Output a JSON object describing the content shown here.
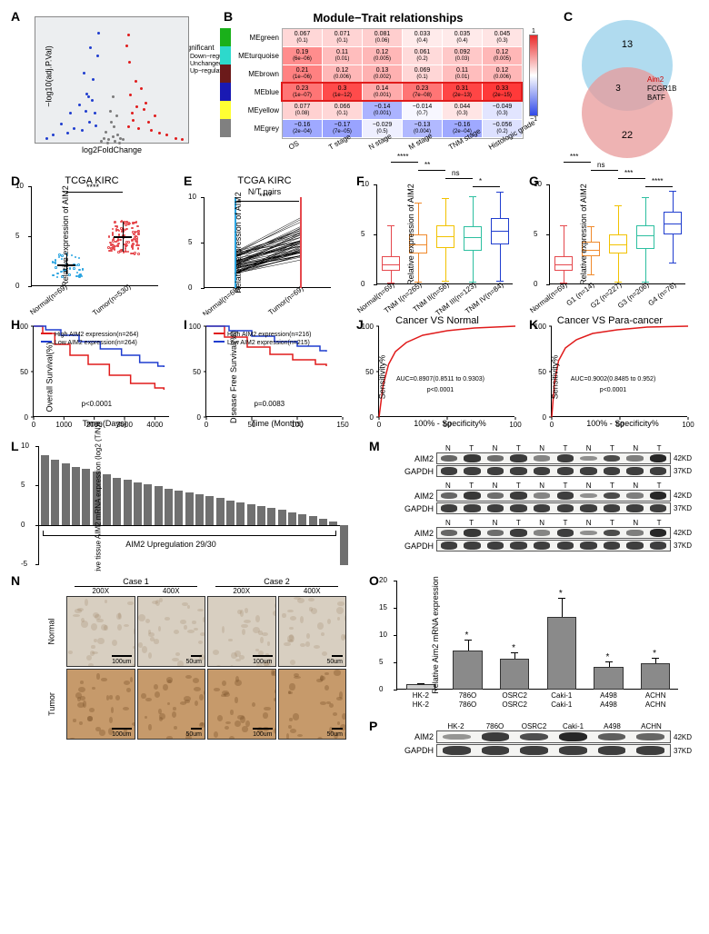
{
  "panelA": {
    "label": "A",
    "type": "volcano-scatter",
    "xlim": [
      -6,
      6
    ],
    "ylim": [
      0,
      8
    ],
    "xlabel": "log2FoldChange",
    "ylabel": "−log10(adj.P.Val)",
    "legend_title": "significant",
    "legend": [
      {
        "label": "Down−regulated",
        "color": "#1f3dcf"
      },
      {
        "label": "Unchanged",
        "color": "#7a7a7a"
      },
      {
        "label": "Up−regulated",
        "color": "#e01b1b"
      }
    ],
    "bg_color": "#eceef0",
    "points": {
      "down": [
        [
          -1.3,
          1.2
        ],
        [
          -1.8,
          1.4
        ],
        [
          -2.4,
          0.9
        ],
        [
          -2.1,
          2.1
        ],
        [
          -3.0,
          1.0
        ],
        [
          -3.5,
          0.7
        ],
        [
          -4.0,
          1.3
        ],
        [
          -2.0,
          3.2
        ],
        [
          -1.5,
          4.1
        ],
        [
          -1.2,
          5.6
        ],
        [
          -2.6,
          2.5
        ],
        [
          -4.6,
          0.6
        ],
        [
          -5.1,
          0.4
        ],
        [
          -1.7,
          6.1
        ],
        [
          -2.2,
          4.5
        ],
        [
          -1.9,
          3.0
        ],
        [
          -1.4,
          2.0
        ],
        [
          -1.6,
          2.8
        ],
        [
          -3.3,
          2.0
        ],
        [
          -1.1,
          7.0
        ]
      ],
      "up": [
        [
          1.2,
          1.1
        ],
        [
          1.6,
          1.5
        ],
        [
          2.0,
          1.0
        ],
        [
          2.4,
          2.2
        ],
        [
          3.0,
          0.9
        ],
        [
          3.6,
          0.7
        ],
        [
          4.2,
          0.6
        ],
        [
          1.4,
          3.1
        ],
        [
          1.8,
          4.0
        ],
        [
          1.3,
          5.2
        ],
        [
          2.6,
          2.6
        ],
        [
          4.9,
          0.4
        ],
        [
          5.4,
          0.3
        ],
        [
          1.1,
          6.2
        ],
        [
          2.2,
          3.5
        ],
        [
          1.9,
          2.4
        ],
        [
          1.5,
          2.0
        ],
        [
          3.3,
          1.8
        ],
        [
          2.8,
          1.4
        ],
        [
          1.2,
          6.9
        ]
      ],
      "unchanged": [
        [
          -0.3,
          0.3
        ],
        [
          0.2,
          0.2
        ],
        [
          -0.5,
          0.8
        ],
        [
          0.4,
          0.6
        ],
        [
          -0.1,
          1.4
        ],
        [
          0.1,
          1.1
        ],
        [
          -0.7,
          0.4
        ],
        [
          0.6,
          0.4
        ],
        [
          -0.2,
          2.1
        ],
        [
          0.3,
          1.8
        ],
        [
          0.0,
          0.5
        ],
        [
          -0.4,
          0.1
        ],
        [
          0.5,
          0.1
        ],
        [
          0.8,
          0.3
        ],
        [
          -0.9,
          0.2
        ],
        [
          0.0,
          3.0
        ]
      ]
    }
  },
  "panelB": {
    "label": "B",
    "title": "Module−Trait relationships",
    "row_names": [
      "MEgreen",
      "MEturquoise",
      "MEbrown",
      "MEblue",
      "MEyellow",
      "MEgrey"
    ],
    "row_colors": [
      "#1ab01a",
      "#2dd9cc",
      "#6b1a1a",
      "#1919b3",
      "#ffff33",
      "#808080"
    ],
    "col_names": [
      "OS",
      "T stage",
      "N stage",
      "M stage",
      "TNM stage",
      "Histologic grade"
    ],
    "scale_min": -1,
    "scale_max": 1,
    "scale_colors": [
      "#3049e8",
      "#ffffff",
      "#ea2a2a"
    ],
    "highlight_row": 3,
    "cells": [
      [
        [
          "0.067",
          "(0.1)"
        ],
        [
          "0.071",
          "(0.1)"
        ],
        [
          "0.081",
          "(0.06)"
        ],
        [
          "0.033",
          "(0.4)"
        ],
        [
          "0.035",
          "(0.4)"
        ],
        [
          "0.045",
          "(0.3)"
        ]
      ],
      [
        [
          "0.19",
          "(6e−06)"
        ],
        [
          "0.11",
          "(0.01)"
        ],
        [
          "0.12",
          "(0.005)"
        ],
        [
          "0.061",
          "(0.2)"
        ],
        [
          "0.092",
          "(0.03)"
        ],
        [
          "0.12",
          "(0.005)"
        ]
      ],
      [
        [
          "0.21",
          "(1e−06)"
        ],
        [
          "0.12",
          "(0.006)"
        ],
        [
          "0.13",
          "(0.002)"
        ],
        [
          "0.069",
          "(0.1)"
        ],
        [
          "0.11",
          "(0.01)"
        ],
        [
          "0.12",
          "(0.006)"
        ]
      ],
      [
        [
          "0.23",
          "(1e−07)"
        ],
        [
          "0.3",
          "(1e−12)"
        ],
        [
          "0.14",
          "(0.001)"
        ],
        [
          "0.23",
          "(7e−08)"
        ],
        [
          "0.31",
          "(2e−13)"
        ],
        [
          "0.33",
          "(2e−15)"
        ]
      ],
      [
        [
          "0.077",
          "(0.08)"
        ],
        [
          "0.066",
          "(0.1)"
        ],
        [
          "−0.14",
          "(0.001)"
        ],
        [
          "−0.014",
          "(0.7)"
        ],
        [
          "0.044",
          "(0.3)"
        ],
        [
          "−0.049",
          "(0.3)"
        ]
      ],
      [
        [
          "−0.16",
          "(2e−04)"
        ],
        [
          "−0.17",
          "(7e−05)"
        ],
        [
          "−0.029",
          "(0.5)"
        ],
        [
          "−0.13",
          "(0.004)"
        ],
        [
          "−0.16",
          "(2e−04)"
        ],
        [
          "−0.056",
          "(0.2)"
        ]
      ]
    ]
  },
  "panelC": {
    "label": "C",
    "top": {
      "count": "13",
      "color": "#96cfea"
    },
    "bottom": {
      "count": "22",
      "color": "#e89a9a"
    },
    "overlap_count": "3",
    "overlap_genes": [
      "Aim2",
      "FCGR1B",
      "BATF"
    ]
  },
  "panelD": {
    "label": "D",
    "title": "TCGA KIRC",
    "ylabel": "Relative expression of AIM2",
    "ylim": [
      0,
      10
    ],
    "yticks": [
      0,
      5,
      10
    ],
    "groups": [
      {
        "label": "Normal(n=69)",
        "color": "#2aa4e0"
      },
      {
        "label": "Tumor(n=530)",
        "color": "#e5484d"
      }
    ],
    "sig": "****"
  },
  "panelE": {
    "label": "E",
    "title": "TCGA KIRC",
    "subtitle": "N/T pairs",
    "ylabel": "Relative expression of AIM2",
    "ylim": [
      0,
      10
    ],
    "yticks": [
      0,
      5,
      10
    ],
    "left": {
      "label": "Normal(n=69)",
      "color": "#2aa4e0"
    },
    "right": {
      "label": "Tumor(n=69)",
      "color": "#e5484d"
    },
    "sig": "****"
  },
  "panelF": {
    "label": "F",
    "ylabel": "Relative expression of AIM2",
    "ylim": [
      0,
      10
    ],
    "yticks": [
      0,
      5,
      10
    ],
    "groups": [
      {
        "label": "Normal(n=69)",
        "color": "#e5484d",
        "med": 2.0,
        "q1": 1.4,
        "q3": 2.8,
        "lo": 0.2,
        "hi": 5.9
      },
      {
        "label": "TNM I(n=265)",
        "color": "#f08a2c",
        "med": 4.0,
        "q1": 3.1,
        "q3": 5.0,
        "lo": 0.3,
        "hi": 8.2
      },
      {
        "label": "TNM II(n=56)",
        "color": "#f2c200",
        "med": 4.8,
        "q1": 3.6,
        "q3": 5.9,
        "lo": 0.4,
        "hi": 8.6
      },
      {
        "label": "TNM III(n=123)",
        "color": "#2dbfa0",
        "med": 4.7,
        "q1": 3.4,
        "q3": 5.8,
        "lo": 0.3,
        "hi": 8.8
      },
      {
        "label": "TNM IV(n=84)",
        "color": "#1f3dcf",
        "med": 5.4,
        "q1": 4.0,
        "q3": 6.6,
        "lo": 0.4,
        "hi": 9.3
      }
    ],
    "sigs": [
      [
        "0-1",
        "****"
      ],
      [
        "1-2",
        "**"
      ],
      [
        "2-3",
        "ns"
      ],
      [
        "3-4",
        "*"
      ]
    ]
  },
  "panelG": {
    "label": "G",
    "ylabel": "Relative expression of AIM2",
    "ylim": [
      0,
      10
    ],
    "yticks": [
      0,
      5,
      10
    ],
    "groups": [
      {
        "label": "Normal(n=69)",
        "color": "#e5484d",
        "med": 2.0,
        "q1": 1.4,
        "q3": 2.8,
        "lo": 0.2,
        "hi": 5.9
      },
      {
        "label": "G1 (n=14)",
        "color": "#f08a2c",
        "med": 3.5,
        "q1": 2.8,
        "q3": 4.3,
        "lo": 1.0,
        "hi": 5.8
      },
      {
        "label": "G2 (n=227)",
        "color": "#f2c200",
        "med": 4.0,
        "q1": 3.1,
        "q3": 5.0,
        "lo": 0.3,
        "hi": 7.9
      },
      {
        "label": "G3 (n=206)",
        "color": "#2dbfa0",
        "med": 4.9,
        "q1": 3.5,
        "q3": 5.9,
        "lo": 0.3,
        "hi": 8.7
      },
      {
        "label": "G4 (n=76)",
        "color": "#1f3dcf",
        "med": 6.1,
        "q1": 5.0,
        "q3": 7.3,
        "lo": 2.2,
        "hi": 9.4
      }
    ],
    "sigs": [
      [
        "0-1",
        "***"
      ],
      [
        "1-2",
        "ns"
      ],
      [
        "2-3",
        "***"
      ],
      [
        "3-4",
        "****"
      ]
    ]
  },
  "panelH": {
    "label": "H",
    "ylabel": "Overall Survival(%)",
    "xlabel": "Time (Days)",
    "ylim": [
      0,
      100
    ],
    "yticks": [
      0,
      50,
      100
    ],
    "xlim": [
      0,
      4500
    ],
    "xticks": [
      0,
      1000,
      2000,
      3000,
      4000
    ],
    "legend": [
      {
        "label": "High AIM2  expression(n=264)",
        "color": "#e01b1b"
      },
      {
        "label": "Low AIM2 expression(n=264)",
        "color": "#1f3dcf"
      }
    ],
    "p": "p<0.0001",
    "high": [
      [
        0,
        100
      ],
      [
        300,
        92
      ],
      [
        700,
        80
      ],
      [
        1200,
        68
      ],
      [
        1800,
        58
      ],
      [
        2500,
        46
      ],
      [
        3200,
        37
      ],
      [
        4000,
        32
      ],
      [
        4300,
        30
      ]
    ],
    "low": [
      [
        0,
        100
      ],
      [
        400,
        96
      ],
      [
        900,
        90
      ],
      [
        1500,
        83
      ],
      [
        2200,
        75
      ],
      [
        2900,
        68
      ],
      [
        3500,
        60
      ],
      [
        4100,
        56
      ],
      [
        4300,
        55
      ]
    ]
  },
  "panelI": {
    "label": "I",
    "ylabel": "Disease Free Survival(%)",
    "xlabel": "Time (Months)",
    "ylim": [
      0,
      100
    ],
    "yticks": [
      0,
      50,
      100
    ],
    "xlim": [
      0,
      150
    ],
    "xticks": [
      0,
      50,
      100,
      150
    ],
    "legend": [
      {
        "label": "High AIM2  expression(n=216)",
        "color": "#e01b1b"
      },
      {
        "label": "Low AIM2 expression(n=215)",
        "color": "#1f3dcf"
      }
    ],
    "p": "p=0.0083",
    "high": [
      [
        0,
        100
      ],
      [
        20,
        88
      ],
      [
        45,
        77
      ],
      [
        70,
        69
      ],
      [
        95,
        63
      ],
      [
        120,
        58
      ],
      [
        132,
        56
      ]
    ],
    "low": [
      [
        0,
        100
      ],
      [
        25,
        95
      ],
      [
        50,
        89
      ],
      [
        75,
        83
      ],
      [
        100,
        78
      ],
      [
        125,
        73
      ],
      [
        132,
        72
      ]
    ]
  },
  "panelJ": {
    "label": "J",
    "title": "Cancer VS Normal",
    "xlabel": "100% - Specificity%",
    "ylabel": "Sensitivity%",
    "xlim": [
      0,
      100
    ],
    "ylim": [
      0,
      100
    ],
    "xticks": [
      0,
      50,
      100
    ],
    "yticks": [
      0,
      50,
      100
    ],
    "auc": "AUC=0.8907(0.8511 to 0.9303)",
    "p": "p<0.0001",
    "line_color": "#e01b1b",
    "curve": [
      [
        0,
        0
      ],
      [
        3,
        35
      ],
      [
        7,
        58
      ],
      [
        12,
        72
      ],
      [
        20,
        82
      ],
      [
        32,
        90
      ],
      [
        50,
        95
      ],
      [
        70,
        98
      ],
      [
        100,
        100
      ]
    ]
  },
  "panelK": {
    "label": "K",
    "title": "Cancer VS Para-cancer",
    "xlabel": "100% - Specificity%",
    "ylabel": "Sensitivity%",
    "xlim": [
      0,
      100
    ],
    "ylim": [
      0,
      100
    ],
    "xticks": [
      0,
      50,
      100
    ],
    "yticks": [
      0,
      50,
      100
    ],
    "auc": "AUC=0.9002(0.8485 to 0.952)",
    "p": "p<0.0001",
    "line_color": "#e01b1b",
    "curve": [
      [
        0,
        0
      ],
      [
        2,
        38
      ],
      [
        5,
        62
      ],
      [
        10,
        76
      ],
      [
        18,
        85
      ],
      [
        30,
        92
      ],
      [
        48,
        96
      ],
      [
        70,
        99
      ],
      [
        100,
        100
      ]
    ]
  },
  "panelL": {
    "label": "L",
    "ylabel": "Relative tissue AIM2 mRNA\nexpression (log2 (T/N))",
    "ylim": [
      -5,
      10
    ],
    "yticks": [
      -5,
      0,
      5,
      10
    ],
    "bar_color": "#707070",
    "annotation": "AIM2 Upregulation 29/30",
    "values": [
      8.8,
      8.3,
      7.8,
      7.4,
      7.1,
      6.8,
      6.4,
      6.0,
      5.7,
      5.4,
      5.1,
      4.9,
      4.6,
      4.4,
      4.1,
      3.9,
      3.6,
      3.4,
      3.1,
      2.9,
      2.6,
      2.4,
      2.1,
      1.9,
      1.6,
      1.3,
      1.1,
      0.8,
      0.4,
      -5.1
    ]
  },
  "panelM": {
    "label": "M",
    "lanes_top": [
      "N",
      "T",
      "N",
      "T",
      "N",
      "T",
      "N",
      "T",
      "N",
      "T"
    ],
    "proteins": [
      {
        "name": "AIM2",
        "kd": "42KD",
        "pattern": [
          0.55,
          0.85,
          0.5,
          0.82,
          0.35,
          0.8,
          0.28,
          0.72,
          0.4,
          0.95
        ]
      },
      {
        "name": "GAPDH",
        "kd": "37KD",
        "pattern": [
          0.8,
          0.8,
          0.8,
          0.8,
          0.8,
          0.8,
          0.8,
          0.8,
          0.8,
          0.8
        ]
      }
    ],
    "repeat": 3
  },
  "panelN": {
    "label": "N",
    "col_groups": [
      {
        "label": "Case 1",
        "mags": [
          "200X",
          "400X"
        ]
      },
      {
        "label": "Case 2",
        "mags": [
          "200X",
          "400X"
        ]
      }
    ],
    "row_groups": [
      "Normal",
      "Tumor"
    ],
    "scales": [
      "100um",
      "50um",
      "100um",
      "50um"
    ],
    "normal_color": "#d8cfc1",
    "tumor_color": "#c69a6b"
  },
  "panelO": {
    "label": "O",
    "ylabel": "Relative Aim2 mRNA expression",
    "ylim": [
      0,
      20
    ],
    "yticks": [
      0,
      5,
      10,
      15,
      20
    ],
    "bar_color": "#8a8a8a",
    "ref_color": "#cfcfcf",
    "groups": [
      {
        "top": "HK-2",
        "bottom": "HK-2",
        "val": 1.0,
        "err": 0.2,
        "sig": ""
      },
      {
        "top": "786O",
        "bottom": "786O",
        "val": 7.1,
        "err": 2.1,
        "sig": "*"
      },
      {
        "top": "OSRC2",
        "bottom": "OSRC2",
        "val": 5.6,
        "err": 1.2,
        "sig": "*"
      },
      {
        "top": "Caki-1",
        "bottom": "Caki-1",
        "val": 13.3,
        "err": 3.6,
        "sig": "*"
      },
      {
        "top": "A498",
        "bottom": "A498",
        "val": 4.2,
        "err": 1.0,
        "sig": "*"
      },
      {
        "top": "ACHN",
        "bottom": "ACHN",
        "val": 4.9,
        "err": 0.9,
        "sig": "*"
      }
    ]
  },
  "panelP": {
    "label": "P",
    "lanes": [
      "HK-2",
      "786O",
      "OSRC2",
      "Caki-1",
      "A498",
      "ACHN"
    ],
    "proteins": [
      {
        "name": "AIM2",
        "kd": "42KD",
        "pattern": [
          0.25,
          0.82,
          0.7,
          0.95,
          0.6,
          0.55
        ]
      },
      {
        "name": "GAPDH",
        "kd": "37KD",
        "pattern": [
          0.8,
          0.8,
          0.8,
          0.8,
          0.8,
          0.8
        ]
      }
    ]
  }
}
